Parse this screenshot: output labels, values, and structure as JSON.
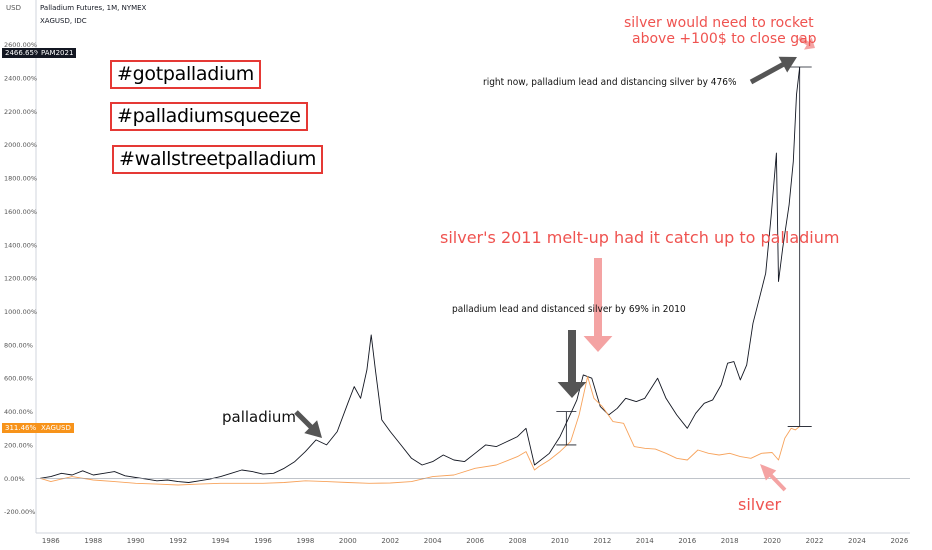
{
  "header": {
    "axis_unit": "USD",
    "title": "Palladium Futures, 1M, NYMEX",
    "subtitle": "XAGUSD, IDC"
  },
  "hashtags": [
    "#gotpalladium",
    "#palladiumsqueeze",
    "#wallstreetpalladium"
  ],
  "annotations": {
    "silver_rocket_line1": "silver would need to rocket",
    "silver_rocket_line2": "above +100$ to close gap",
    "right_now": "right now, palladium lead and distancing silver by 476%",
    "melt_up": "silver's 2011 melt-up had it catch up to palladium",
    "lead_2010": "palladium lead and distanced silver by 69% in 2010",
    "palladium_label": "palladium",
    "silver_label": "silver"
  },
  "badges": {
    "palladium_value": "2466.65%",
    "palladium_symbol": "PAM2021",
    "silver_value": "311.46%",
    "silver_symbol": "XAGUSD"
  },
  "colors": {
    "palladium": "#131722",
    "silver": "#f7a35c",
    "accent_red": "#ef5350",
    "tag_border": "#e53935",
    "arrow_gray": "#555555",
    "arrow_pink": "#f4a3a3"
  },
  "chart_data": {
    "type": "line",
    "title": "Palladium Futures, 1M, NYMEX",
    "ylabel": "",
    "xlabel": "",
    "ylim": [
      -250,
      2700
    ],
    "xlim": [
      1985.3,
      2026.5
    ],
    "y_ticks": [
      -200,
      0,
      200,
      400,
      600,
      800,
      1000,
      1200,
      1400,
      1600,
      1800,
      2000,
      2200,
      2400,
      2600
    ],
    "y_tick_labels": [
      "-200.00%",
      "0.00%",
      "200.00%",
      "400.00%",
      "600.00%",
      "800.00%",
      "1000.00%",
      "1200.00%",
      "1400.00%",
      "1600.00%",
      "1800.00%",
      "2000.00%",
      "2200.00%",
      "2400.00%",
      "2600.00%"
    ],
    "x_ticks": [
      1986,
      1988,
      1990,
      1992,
      1994,
      1996,
      1998,
      2000,
      2002,
      2004,
      2006,
      2008,
      2010,
      2012,
      2014,
      2016,
      2018,
      2020,
      2022,
      2024,
      2026
    ],
    "grid": false,
    "series": [
      {
        "name": "PAM2021",
        "points": [
          [
            1985.5,
            0
          ],
          [
            1986.0,
            10
          ],
          [
            1986.5,
            30
          ],
          [
            1987.0,
            20
          ],
          [
            1987.5,
            45
          ],
          [
            1988.0,
            20
          ],
          [
            1988.5,
            30
          ],
          [
            1989.0,
            40
          ],
          [
            1989.5,
            15
          ],
          [
            1990.0,
            5
          ],
          [
            1990.5,
            -5
          ],
          [
            1991.0,
            -15
          ],
          [
            1991.5,
            -10
          ],
          [
            1992.0,
            -20
          ],
          [
            1992.5,
            -25
          ],
          [
            1993.0,
            -15
          ],
          [
            1993.5,
            -5
          ],
          [
            1994.0,
            10
          ],
          [
            1994.5,
            30
          ],
          [
            1995.0,
            50
          ],
          [
            1995.5,
            40
          ],
          [
            1996.0,
            25
          ],
          [
            1996.5,
            30
          ],
          [
            1997.0,
            60
          ],
          [
            1997.5,
            100
          ],
          [
            1998.0,
            160
          ],
          [
            1998.5,
            230
          ],
          [
            1999.0,
            200
          ],
          [
            1999.5,
            280
          ],
          [
            2000.0,
            450
          ],
          [
            2000.3,
            550
          ],
          [
            2000.6,
            480
          ],
          [
            2000.9,
            650
          ],
          [
            2001.1,
            860
          ],
          [
            2001.3,
            650
          ],
          [
            2001.6,
            350
          ],
          [
            2002.0,
            280
          ],
          [
            2002.5,
            200
          ],
          [
            2003.0,
            120
          ],
          [
            2003.5,
            80
          ],
          [
            2004.0,
            100
          ],
          [
            2004.5,
            140
          ],
          [
            2005.0,
            110
          ],
          [
            2005.5,
            100
          ],
          [
            2006.0,
            150
          ],
          [
            2006.5,
            200
          ],
          [
            2007.0,
            190
          ],
          [
            2007.5,
            220
          ],
          [
            2008.0,
            250
          ],
          [
            2008.4,
            300
          ],
          [
            2008.8,
            80
          ],
          [
            2009.0,
            100
          ],
          [
            2009.5,
            150
          ],
          [
            2010.0,
            250
          ],
          [
            2010.4,
            360
          ],
          [
            2010.8,
            470
          ],
          [
            2011.1,
            620
          ],
          [
            2011.5,
            600
          ],
          [
            2011.9,
            430
          ],
          [
            2012.3,
            380
          ],
          [
            2012.7,
            420
          ],
          [
            2013.1,
            480
          ],
          [
            2013.6,
            460
          ],
          [
            2014.0,
            480
          ],
          [
            2014.6,
            600
          ],
          [
            2015.0,
            480
          ],
          [
            2015.5,
            380
          ],
          [
            2016.0,
            300
          ],
          [
            2016.4,
            390
          ],
          [
            2016.8,
            450
          ],
          [
            2017.2,
            470
          ],
          [
            2017.6,
            560
          ],
          [
            2017.9,
            690
          ],
          [
            2018.2,
            700
          ],
          [
            2018.5,
            590
          ],
          [
            2018.8,
            680
          ],
          [
            2019.1,
            930
          ],
          [
            2019.4,
            1080
          ],
          [
            2019.7,
            1230
          ],
          [
            2019.95,
            1570
          ],
          [
            2020.2,
            1950
          ],
          [
            2020.3,
            1180
          ],
          [
            2020.5,
            1380
          ],
          [
            2020.8,
            1640
          ],
          [
            2021.0,
            1900
          ],
          [
            2021.15,
            2300
          ],
          [
            2021.3,
            2466
          ]
        ]
      },
      {
        "name": "XAGUSD",
        "points": [
          [
            1985.5,
            0
          ],
          [
            1986.0,
            -20
          ],
          [
            1987.0,
            10
          ],
          [
            1988.0,
            -10
          ],
          [
            1989.0,
            -20
          ],
          [
            1990.0,
            -30
          ],
          [
            1991.0,
            -35
          ],
          [
            1992.0,
            -40
          ],
          [
            1993.0,
            -35
          ],
          [
            1994.0,
            -30
          ],
          [
            1995.0,
            -30
          ],
          [
            1996.0,
            -30
          ],
          [
            1997.0,
            -25
          ],
          [
            1998.0,
            -15
          ],
          [
            1999.0,
            -20
          ],
          [
            2000.0,
            -25
          ],
          [
            2001.0,
            -30
          ],
          [
            2002.0,
            -28
          ],
          [
            2003.0,
            -20
          ],
          [
            2004.0,
            10
          ],
          [
            2005.0,
            20
          ],
          [
            2006.0,
            60
          ],
          [
            2007.0,
            80
          ],
          [
            2008.0,
            130
          ],
          [
            2008.4,
            160
          ],
          [
            2008.8,
            50
          ],
          [
            2009.0,
            70
          ],
          [
            2009.5,
            110
          ],
          [
            2010.0,
            160
          ],
          [
            2010.5,
            220
          ],
          [
            2010.9,
            380
          ],
          [
            2011.3,
            610
          ],
          [
            2011.6,
            480
          ],
          [
            2012.0,
            430
          ],
          [
            2012.5,
            340
          ],
          [
            2013.0,
            330
          ],
          [
            2013.5,
            190
          ],
          [
            2014.0,
            180
          ],
          [
            2014.5,
            175
          ],
          [
            2015.0,
            150
          ],
          [
            2015.5,
            120
          ],
          [
            2016.0,
            110
          ],
          [
            2016.5,
            170
          ],
          [
            2017.0,
            150
          ],
          [
            2017.5,
            140
          ],
          [
            2018.0,
            150
          ],
          [
            2018.5,
            130
          ],
          [
            2019.0,
            120
          ],
          [
            2019.5,
            150
          ],
          [
            2020.0,
            155
          ],
          [
            2020.3,
            110
          ],
          [
            2020.6,
            240
          ],
          [
            2020.9,
            300
          ],
          [
            2021.1,
            290
          ],
          [
            2021.3,
            311
          ]
        ]
      }
    ]
  }
}
